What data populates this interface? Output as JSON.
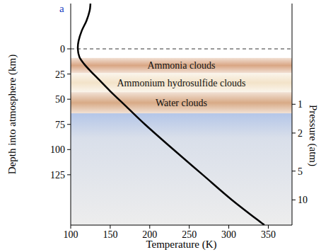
{
  "chart_data": {
    "type": "line",
    "panel_label": "a",
    "x_label": "Temperature (K)",
    "y_label": "Depth into atmosphere (km)",
    "y2_label": "Pressure (atm)",
    "xlim": [
      100,
      380
    ],
    "xticks": [
      100,
      150,
      200,
      250,
      300,
      350
    ],
    "ylim": [
      -45,
      175
    ],
    "yticks": [
      0,
      25,
      50,
      75,
      100,
      125
    ],
    "y2lim": [
      0.0885,
      18.35
    ],
    "y2ticks": [
      1,
      2,
      5,
      10
    ],
    "log": "y2",
    "reference_lines": [
      {
        "y": 0,
        "line_style": "dashed"
      }
    ],
    "bands": [
      {
        "label": "Ammonia clouds",
        "y": [
          9,
          24
        ],
        "color": "#d9a684"
      },
      {
        "label": "Ammonium hydrosulfide clouds",
        "y": [
          24,
          43
        ],
        "color": "#f3e3c9"
      },
      {
        "label": "Water clouds",
        "y": [
          43,
          64
        ],
        "color": "#d8aa86"
      }
    ],
    "series": [
      {
        "color": "#000000",
        "x": [
          125,
          124,
          120,
          114,
          110,
          109,
          111,
          117,
          125,
          135,
          150,
          170,
          194,
          230,
          267,
          304,
          345
        ],
        "values": [
          -45,
          -38,
          -28,
          -18,
          -8,
          0,
          8,
          15,
          22,
          30,
          42,
          57,
          75,
          100,
          125,
          150,
          175
        ]
      }
    ]
  }
}
